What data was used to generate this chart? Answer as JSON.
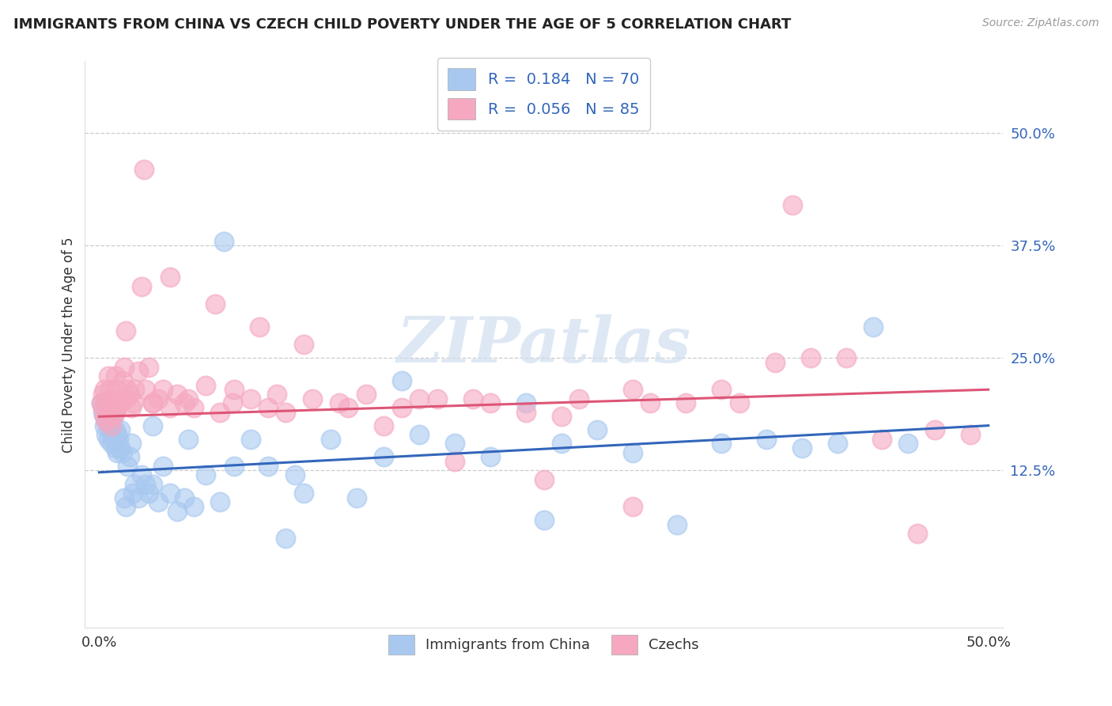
{
  "title": "IMMIGRANTS FROM CHINA VS CZECH CHILD POVERTY UNDER THE AGE OF 5 CORRELATION CHART",
  "source": "Source: ZipAtlas.com",
  "ylabel": "Child Poverty Under the Age of 5",
  "yticks_labels": [
    "50.0%",
    "37.5%",
    "25.0%",
    "12.5%"
  ],
  "ytick_vals": [
    0.5,
    0.375,
    0.25,
    0.125
  ],
  "legend1_label": "R =  0.184   N = 70",
  "legend2_label": "R =  0.056   N = 85",
  "scatter1_color": "#A8C8F0",
  "scatter2_color": "#F5A8C0",
  "line1_color": "#3366BB",
  "line2_color": "#DD5577",
  "watermark": "ZIPatlas",
  "blue_x": [
    0.001,
    0.002,
    0.003,
    0.003,
    0.004,
    0.004,
    0.005,
    0.005,
    0.006,
    0.006,
    0.007,
    0.007,
    0.008,
    0.008,
    0.009,
    0.009,
    0.01,
    0.01,
    0.011,
    0.012,
    0.012,
    0.013,
    0.014,
    0.015,
    0.016,
    0.017,
    0.018,
    0.019,
    0.02,
    0.022,
    0.024,
    0.026,
    0.028,
    0.03,
    0.033,
    0.036,
    0.04,
    0.044,
    0.048,
    0.053,
    0.06,
    0.068,
    0.076,
    0.085,
    0.095,
    0.105,
    0.115,
    0.13,
    0.145,
    0.16,
    0.18,
    0.2,
    0.22,
    0.24,
    0.26,
    0.28,
    0.3,
    0.325,
    0.35,
    0.375,
    0.395,
    0.415,
    0.435,
    0.455,
    0.03,
    0.05,
    0.07,
    0.11,
    0.17,
    0.25
  ],
  "blue_y": [
    0.2,
    0.19,
    0.185,
    0.175,
    0.18,
    0.165,
    0.195,
    0.16,
    0.185,
    0.17,
    0.175,
    0.155,
    0.185,
    0.16,
    0.17,
    0.15,
    0.165,
    0.145,
    0.16,
    0.17,
    0.15,
    0.145,
    0.095,
    0.085,
    0.13,
    0.14,
    0.155,
    0.1,
    0.11,
    0.095,
    0.12,
    0.11,
    0.1,
    0.11,
    0.09,
    0.13,
    0.1,
    0.08,
    0.095,
    0.085,
    0.12,
    0.09,
    0.13,
    0.16,
    0.13,
    0.05,
    0.1,
    0.16,
    0.095,
    0.14,
    0.165,
    0.155,
    0.14,
    0.2,
    0.155,
    0.17,
    0.145,
    0.065,
    0.155,
    0.16,
    0.15,
    0.155,
    0.285,
    0.155,
    0.175,
    0.16,
    0.38,
    0.12,
    0.225,
    0.07
  ],
  "pink_x": [
    0.001,
    0.002,
    0.002,
    0.003,
    0.003,
    0.004,
    0.004,
    0.005,
    0.005,
    0.006,
    0.006,
    0.007,
    0.007,
    0.008,
    0.008,
    0.009,
    0.009,
    0.01,
    0.01,
    0.011,
    0.012,
    0.013,
    0.014,
    0.015,
    0.016,
    0.017,
    0.018,
    0.019,
    0.02,
    0.022,
    0.024,
    0.026,
    0.028,
    0.03,
    0.033,
    0.036,
    0.04,
    0.044,
    0.048,
    0.053,
    0.06,
    0.068,
    0.076,
    0.085,
    0.095,
    0.105,
    0.12,
    0.135,
    0.15,
    0.17,
    0.19,
    0.21,
    0.24,
    0.27,
    0.3,
    0.33,
    0.36,
    0.39,
    0.42,
    0.03,
    0.05,
    0.075,
    0.1,
    0.14,
    0.18,
    0.22,
    0.26,
    0.31,
    0.35,
    0.4,
    0.44,
    0.47,
    0.49,
    0.015,
    0.025,
    0.04,
    0.065,
    0.09,
    0.115,
    0.16,
    0.2,
    0.25,
    0.3,
    0.38,
    0.46
  ],
  "pink_y": [
    0.2,
    0.21,
    0.195,
    0.185,
    0.215,
    0.2,
    0.18,
    0.23,
    0.19,
    0.215,
    0.195,
    0.205,
    0.175,
    0.2,
    0.185,
    0.23,
    0.19,
    0.215,
    0.195,
    0.205,
    0.2,
    0.225,
    0.24,
    0.205,
    0.215,
    0.21,
    0.195,
    0.2,
    0.215,
    0.235,
    0.33,
    0.215,
    0.24,
    0.2,
    0.205,
    0.215,
    0.195,
    0.21,
    0.2,
    0.195,
    0.22,
    0.19,
    0.215,
    0.205,
    0.195,
    0.19,
    0.205,
    0.2,
    0.21,
    0.195,
    0.205,
    0.205,
    0.19,
    0.205,
    0.215,
    0.2,
    0.2,
    0.42,
    0.25,
    0.2,
    0.205,
    0.2,
    0.21,
    0.195,
    0.205,
    0.2,
    0.185,
    0.2,
    0.215,
    0.25,
    0.16,
    0.17,
    0.165,
    0.28,
    0.46,
    0.34,
    0.31,
    0.285,
    0.265,
    0.175,
    0.135,
    0.115,
    0.085,
    0.245,
    0.055
  ]
}
